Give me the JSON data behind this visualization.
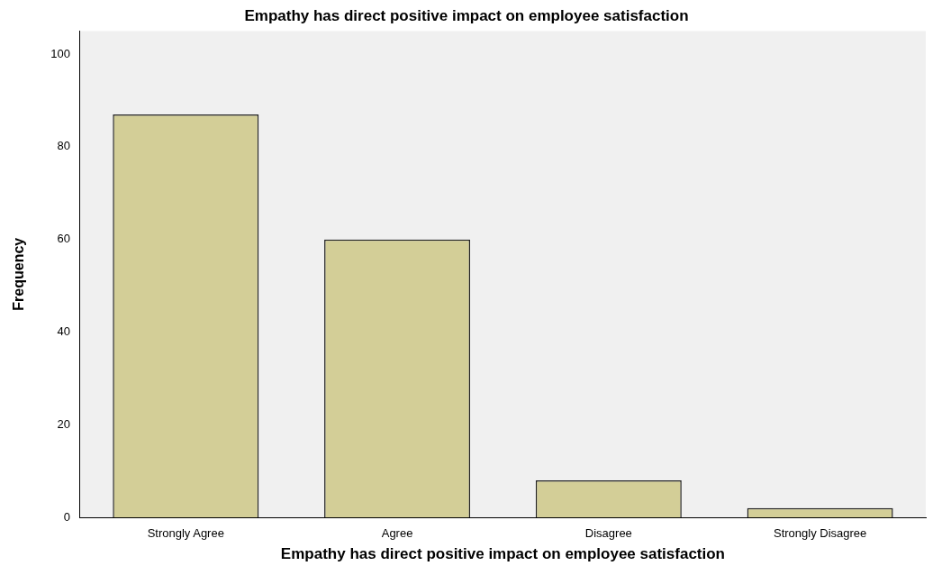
{
  "chart_data": {
    "type": "bar",
    "title": "Empathy has direct positive impact on employee satisfaction",
    "xlabel": "Empathy has direct positive impact on employee satisfaction",
    "ylabel": "Frequency",
    "categories": [
      "Strongly Agree",
      "Agree",
      "Disagree",
      "Strongly Disagree"
    ],
    "values": [
      87,
      60,
      8,
      2
    ],
    "color": "#d3ce97",
    "ylim": [
      0,
      105
    ],
    "yticks": [
      0,
      20,
      40,
      60,
      80,
      100
    ],
    "grid": false,
    "legend": false
  }
}
